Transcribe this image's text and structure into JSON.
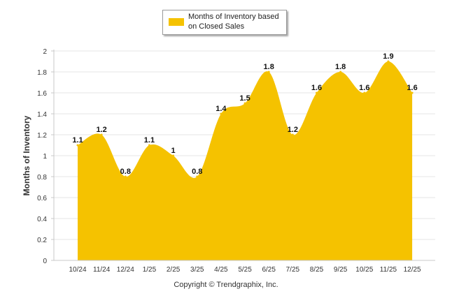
{
  "chart_data": {
    "type": "area",
    "title": "",
    "legend": "Months of Inventory based on Closed Sales",
    "legend_position": "top-center",
    "xlabel": "",
    "ylabel": "Months of Inventory",
    "categories": [
      "10/24",
      "11/24",
      "12/24",
      "1/25",
      "2/25",
      "3/25",
      "4/25",
      "5/25",
      "6/25",
      "7/25",
      "8/25",
      "9/25",
      "10/25",
      "11/25",
      "12/25"
    ],
    "values": [
      1.1,
      1.2,
      0.8,
      1.1,
      1,
      0.8,
      1.4,
      1.5,
      1.8,
      1.2,
      1.6,
      1.8,
      1.6,
      1.9,
      1.6
    ],
    "data_labels": [
      "1.1",
      "1.2",
      "0.8",
      "1.1",
      "1",
      "0.8",
      "1.4",
      "1.5",
      "1.8",
      "1.2",
      "1.6",
      "1.8",
      "1.6",
      "1.9",
      "1.6"
    ],
    "ylim": [
      0,
      2
    ],
    "yticks": [
      "0",
      "0.2",
      "0.4",
      "0.6",
      "0.8",
      "1",
      "1.2",
      "1.4",
      "1.6",
      "1.8",
      "2"
    ],
    "grid": true,
    "fill_color": "#F5C200",
    "grid_color": "#e6e6e6"
  },
  "footer": {
    "copyright": "Copyright © Trendgraphix, Inc."
  }
}
